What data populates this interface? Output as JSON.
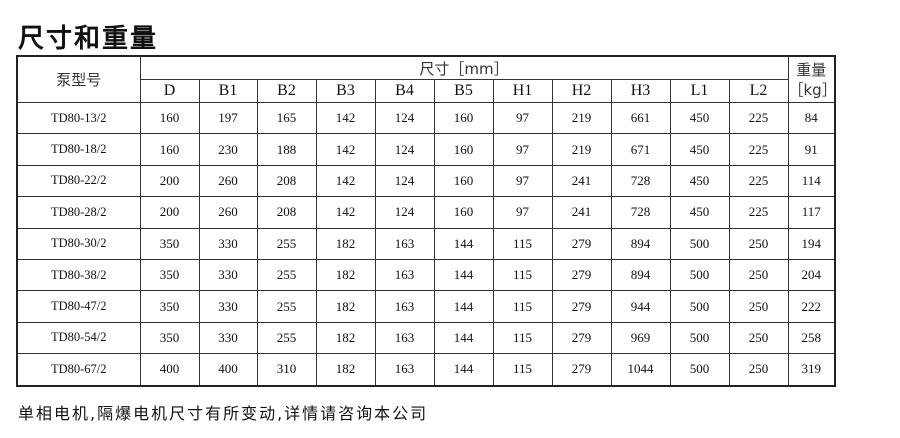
{
  "title": "尺寸和重量",
  "table": {
    "model_header": "泵型号",
    "dimension_header": "尺寸［mm］",
    "weight_header_line1": "重量",
    "weight_header_line2": "［kg］",
    "columns": [
      "D",
      "B1",
      "B2",
      "B3",
      "B4",
      "B5",
      "H1",
      "H2",
      "H3",
      "L1",
      "L2"
    ],
    "rows": [
      {
        "model": "TD80-13/2",
        "values": [
          "160",
          "197",
          "165",
          "142",
          "124",
          "160",
          "97",
          "219",
          "661",
          "450",
          "225"
        ],
        "weight": "84"
      },
      {
        "model": "TD80-18/2",
        "values": [
          "160",
          "230",
          "188",
          "142",
          "124",
          "160",
          "97",
          "219",
          "671",
          "450",
          "225"
        ],
        "weight": "91"
      },
      {
        "model": "TD80-22/2",
        "values": [
          "200",
          "260",
          "208",
          "142",
          "124",
          "160",
          "97",
          "241",
          "728",
          "450",
          "225"
        ],
        "weight": "114"
      },
      {
        "model": "TD80-28/2",
        "values": [
          "200",
          "260",
          "208",
          "142",
          "124",
          "160",
          "97",
          "241",
          "728",
          "450",
          "225"
        ],
        "weight": "117"
      },
      {
        "model": "TD80-30/2",
        "values": [
          "350",
          "330",
          "255",
          "182",
          "163",
          "144",
          "115",
          "279",
          "894",
          "500",
          "250"
        ],
        "weight": "194"
      },
      {
        "model": "TD80-38/2",
        "values": [
          "350",
          "330",
          "255",
          "182",
          "163",
          "144",
          "115",
          "279",
          "894",
          "500",
          "250"
        ],
        "weight": "204"
      },
      {
        "model": "TD80-47/2",
        "values": [
          "350",
          "330",
          "255",
          "182",
          "163",
          "144",
          "115",
          "279",
          "944",
          "500",
          "250"
        ],
        "weight": "222"
      },
      {
        "model": "TD80-54/2",
        "values": [
          "350",
          "330",
          "255",
          "182",
          "163",
          "144",
          "115",
          "279",
          "969",
          "500",
          "250"
        ],
        "weight": "258"
      },
      {
        "model": "TD80-67/2",
        "values": [
          "400",
          "400",
          "310",
          "182",
          "163",
          "144",
          "115",
          "279",
          "1044",
          "500",
          "250"
        ],
        "weight": "319"
      }
    ]
  },
  "note": "单相电机,隔爆电机尺寸有所变动,详情请咨询本公司"
}
